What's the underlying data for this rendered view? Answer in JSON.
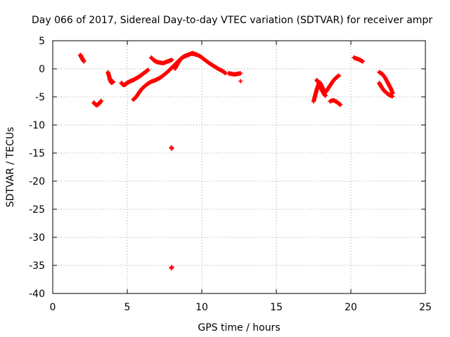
{
  "chart_data": {
    "type": "scatter",
    "title": "Day 066 of 2017, Sidereal Day-to-day VTEC variation (SDTVAR) for receiver ampr",
    "xlabel": "GPS time / hours",
    "ylabel": "SDTVAR / TECUs",
    "xlim": [
      0,
      25
    ],
    "ylim": [
      -40,
      5
    ],
    "xticks": [
      0,
      5,
      10,
      15,
      20,
      25
    ],
    "yticks": [
      5,
      0,
      -5,
      -10,
      -15,
      -20,
      -25,
      -30,
      -35,
      -40
    ],
    "grid": true,
    "marker": "plus",
    "series": [
      {
        "name": "SDTVAR",
        "color": "#ff0000",
        "segments": [
          {
            "x": [
              1.85,
              1.9,
              1.95,
              2.0,
              2.05,
              2.1
            ],
            "y": [
              2.5,
              2.2,
              2.0,
              1.7,
              1.5,
              1.3
            ]
          },
          {
            "x": [
              2.75,
              2.85,
              2.95,
              3.05,
              3.15,
              3.25
            ],
            "y": [
              -6.0,
              -6.3,
              -6.5,
              -6.3,
              -6.1,
              -5.7
            ]
          },
          {
            "x": [
              3.7,
              3.75,
              3.8,
              3.85,
              3.9,
              3.95,
              4.0,
              4.05
            ],
            "y": [
              -0.6,
              -1.0,
              -1.5,
              -2.0,
              -2.3,
              -2.5,
              -2.2,
              -2.4
            ]
          },
          {
            "x": [
              4.6,
              4.7,
              4.8,
              4.9,
              5.0,
              5.2,
              5.4,
              5.6,
              5.8,
              6.0,
              6.2,
              6.4
            ],
            "y": [
              -2.5,
              -2.8,
              -2.9,
              -2.7,
              -2.5,
              -2.2,
              -2.0,
              -1.7,
              -1.4,
              -1.0,
              -0.6,
              -0.2
            ]
          },
          {
            "x": [
              5.4,
              5.6,
              5.8,
              6.0,
              6.3,
              6.6,
              6.9,
              7.2,
              7.5,
              7.8,
              8.1,
              8.4,
              8.7,
              9.0,
              9.3,
              9.6,
              9.9,
              10.2,
              10.5,
              10.8,
              11.1,
              11.4,
              11.6
            ],
            "y": [
              -5.5,
              -5.0,
              -4.2,
              -3.5,
              -2.8,
              -2.3,
              -2.0,
              -1.6,
              -1.0,
              -0.3,
              0.5,
              1.3,
              2.0,
              2.4,
              2.7,
              2.6,
              2.2,
              1.6,
              1.0,
              0.5,
              0.0,
              -0.4,
              -0.8
            ]
          },
          {
            "x": [
              6.6,
              6.8,
              7.0,
              7.2,
              7.4,
              7.6,
              7.8,
              8.0
            ],
            "y": [
              2.0,
              1.5,
              1.2,
              1.1,
              1.0,
              1.2,
              1.4,
              1.6
            ]
          },
          {
            "x": [
              8.2,
              8.4,
              8.6,
              8.8,
              9.0,
              9.2,
              9.4,
              9.6
            ],
            "y": [
              0.0,
              1.0,
              1.8,
              2.2,
              2.4,
              2.6,
              2.8,
              2.5
            ]
          },
          {
            "x": [
              11.8,
              12.0,
              12.2,
              12.4,
              12.6
            ],
            "y": [
              -0.8,
              -0.9,
              -1.0,
              -0.9,
              -0.8
            ]
          },
          {
            "x": [
              12.6
            ],
            "y": [
              -2.2
            ]
          },
          {
            "x": [
              7.95,
              8.0
            ],
            "y": [
              -14.0,
              -14.2
            ]
          },
          {
            "x": [
              7.95,
              8.0
            ],
            "y": [
              -35.5,
              -35.3
            ]
          },
          {
            "x": [
              17.5,
              17.6,
              17.7,
              17.8,
              17.9,
              18.0,
              18.1,
              18.2
            ],
            "y": [
              -5.8,
              -4.8,
              -3.8,
              -3.0,
              -2.4,
              -2.8,
              -3.4,
              -4.0
            ]
          },
          {
            "x": [
              17.7,
              17.8,
              17.9,
              18.0,
              18.1,
              18.2,
              18.3
            ],
            "y": [
              -2.0,
              -2.3,
              -2.8,
              -3.5,
              -4.0,
              -4.5,
              -4.8
            ]
          },
          {
            "x": [
              18.2,
              18.4,
              18.6,
              18.8,
              19.0,
              19.2
            ],
            "y": [
              -4.5,
              -3.8,
              -3.0,
              -2.2,
              -1.6,
              -1.2
            ]
          },
          {
            "x": [
              18.6,
              18.8,
              19.0,
              19.2,
              19.3
            ],
            "y": [
              -5.8,
              -5.6,
              -5.8,
              -6.2,
              -6.4
            ]
          },
          {
            "x": [
              20.2,
              20.4,
              20.6,
              20.8
            ],
            "y": [
              2.0,
              1.8,
              1.6,
              1.3
            ]
          },
          {
            "x": [
              21.9,
              22.1,
              22.3,
              22.5,
              22.7,
              22.8
            ],
            "y": [
              -0.6,
              -0.9,
              -1.6,
              -2.6,
              -3.6,
              -4.4
            ]
          },
          {
            "x": [
              21.9,
              22.0,
              22.2,
              22.4,
              22.6,
              22.8
            ],
            "y": [
              -2.5,
              -3.0,
              -3.8,
              -4.3,
              -4.7,
              -4.9
            ]
          }
        ]
      }
    ]
  }
}
